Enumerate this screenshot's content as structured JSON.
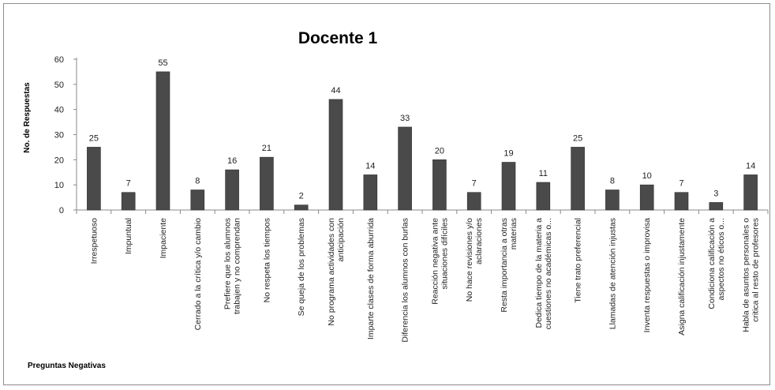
{
  "chart_data": {
    "type": "bar",
    "title": "Docente 1",
    "xlabel": "Preguntas Negativas",
    "ylabel": "No. de Respuestas",
    "ylim": [
      0,
      60
    ],
    "yticks": [
      0,
      10,
      20,
      30,
      40,
      50,
      60
    ],
    "grid": false,
    "legend": "none",
    "bar_color": "#4a4a4a",
    "categories": [
      [
        "Irrespetuoso"
      ],
      [
        "Impuntual"
      ],
      [
        "Impaciente"
      ],
      [
        "Cerrado a la crítica y/o cambio"
      ],
      [
        "Prefiere que los alumnos",
        "trabajen y no comprendan"
      ],
      [
        "No respeta los tiempos"
      ],
      [
        "Se queja de los problemas"
      ],
      [
        "No programa actividades con",
        "anticipación"
      ],
      [
        "Imparte clases de forma aburrida"
      ],
      [
        "Diferencia los alumnos con burlas"
      ],
      [
        "Reacción negativa ante",
        "situaciones difíciles"
      ],
      [
        "No hace revisiones y/o",
        "aclaraciones"
      ],
      [
        "Resta importancia a otras",
        "materias"
      ],
      [
        "Dedica tiempo de la materia a",
        "cuestiones no académicas o..."
      ],
      [
        "Tiene trato preferencial"
      ],
      [
        "Llamadas de atención injustas"
      ],
      [
        "Inventa respuestas o improvisa"
      ],
      [
        "Asigna calificación injustamente"
      ],
      [
        "Condiciona calificación a",
        "aspectos no éticos o..."
      ],
      [
        "Habla de asuntos personales o",
        "critica al resto de profesores"
      ]
    ],
    "values": [
      25,
      7,
      55,
      8,
      16,
      21,
      2,
      44,
      14,
      33,
      20,
      7,
      19,
      11,
      25,
      8,
      10,
      7,
      3,
      14
    ]
  }
}
